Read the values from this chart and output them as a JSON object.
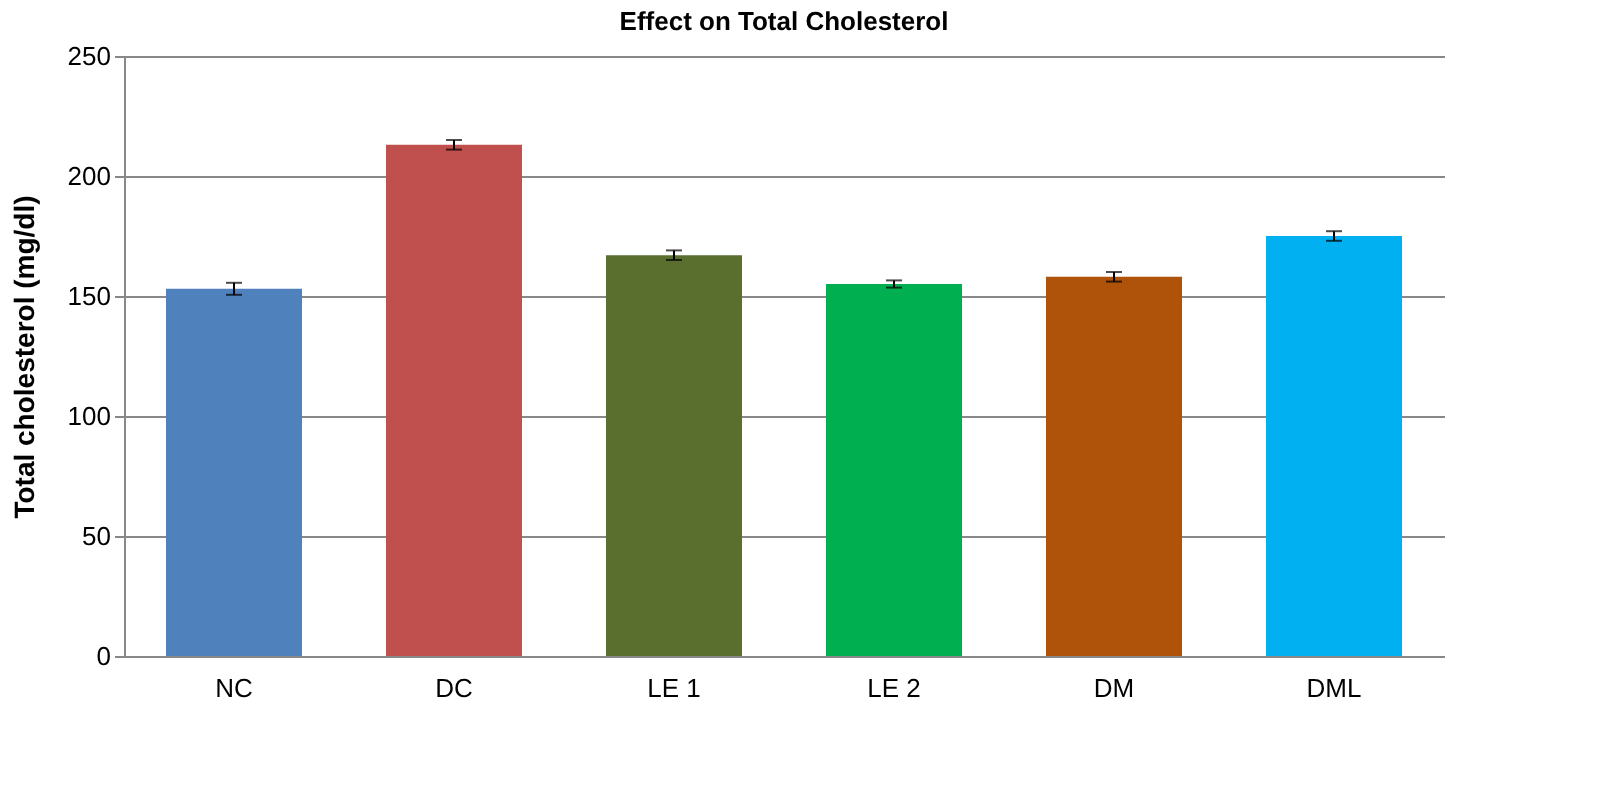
{
  "chart_data": {
    "type": "bar",
    "title": "Effect on Total Cholesterol",
    "ylabel": "Total cholesterol (mg/dl)",
    "categories": [
      "NC",
      "DC",
      "LE 1",
      "LE 2",
      "DM",
      "DML"
    ],
    "values": [
      153,
      213,
      167,
      155,
      158,
      175
    ],
    "errors": [
      2.5,
      2,
      2,
      1.5,
      2,
      2
    ],
    "colors": [
      "#4f81bd",
      "#c0504d",
      "#5a6e2d",
      "#00b050",
      "#b0530a",
      "#00b0f0"
    ],
    "ylim": [
      0,
      250
    ],
    "yticks": [
      0,
      50,
      100,
      150,
      200,
      250
    ],
    "grid": "y",
    "legend": false
  }
}
